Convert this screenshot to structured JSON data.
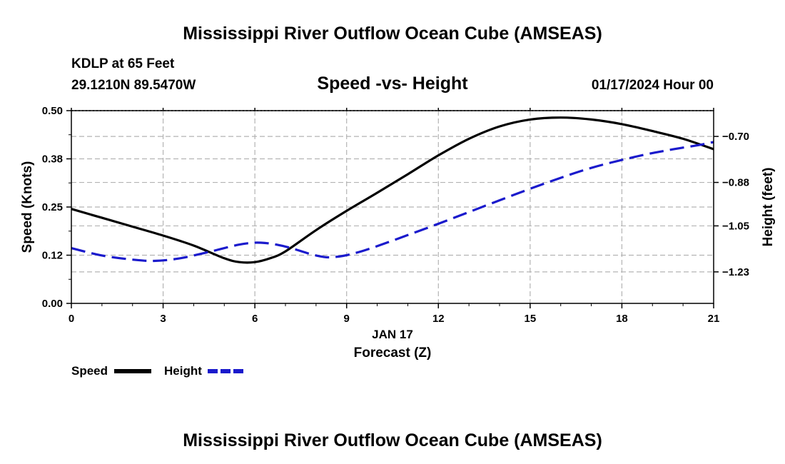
{
  "page": {
    "title": "Mississippi River Outflow Ocean Cube (AMSEAS)",
    "footer_title": "Mississippi River Outflow Ocean Cube (AMSEAS)"
  },
  "header": {
    "station": "KDLP at 65 Feet",
    "coords": "29.1210N  89.5470W",
    "datetime": "01/17/2024 Hour 00"
  },
  "colors": {
    "speed": "#000000",
    "height": "#1a1acc",
    "grid": "#b4b4b4"
  },
  "chart_data": {
    "type": "line",
    "title": "Speed -vs- Height",
    "xlabel": "Forecast (Z)",
    "date_label": "JAN 17",
    "xlim": [
      0,
      21
    ],
    "x_ticks": [
      0,
      3,
      6,
      9,
      12,
      15,
      18,
      21
    ],
    "x_tick_labels": [
      "0",
      "3",
      "6",
      "9",
      "12",
      "15",
      "18",
      "21"
    ],
    "left_axis": {
      "label": "Speed (Knots)",
      "ylim": [
        0,
        0.5
      ],
      "ticks": [
        0,
        0.125,
        0.25,
        0.375,
        0.5
      ],
      "tick_labels": [
        "0.00",
        "0.12",
        "0.25",
        "0.38",
        "0.50"
      ]
    },
    "right_axis": {
      "label": "Height (feet)",
      "ylim": [
        -1.3533,
        -0.5991
      ],
      "ticks": [
        -0.7,
        -0.88,
        -1.05,
        -1.23
      ],
      "tick_labels": [
        "−0.70",
        "−0.88",
        "−1.05",
        "−1.23"
      ]
    },
    "legend": {
      "position": "bottom-left",
      "items": [
        {
          "name": "Speed",
          "style": "solid"
        },
        {
          "name": "Height",
          "style": "dashed"
        }
      ]
    },
    "series": [
      {
        "name": "Speed",
        "axis": "left",
        "style": "solid",
        "x": [
          0,
          1,
          2,
          3,
          4,
          5,
          5.5,
          6,
          6.5,
          7,
          8,
          9,
          10,
          11,
          12,
          13,
          14,
          15,
          16,
          17,
          18,
          19,
          20,
          21
        ],
        "y": [
          0.245,
          0.222,
          0.199,
          0.176,
          0.15,
          0.117,
          0.107,
          0.107,
          0.117,
          0.135,
          0.19,
          0.24,
          0.287,
          0.335,
          0.384,
          0.427,
          0.459,
          0.477,
          0.482,
          0.477,
          0.465,
          0.447,
          0.427,
          0.4
        ]
      },
      {
        "name": "Height",
        "axis": "right",
        "style": "dashed",
        "x": [
          0,
          1,
          2,
          2.7,
          3.5,
          4.5,
          5.5,
          6.2,
          7,
          8,
          8.6,
          9.5,
          11,
          12.5,
          14,
          15.5,
          17,
          18.5,
          19.5,
          20.5,
          21
        ],
        "y": [
          -1.137,
          -1.166,
          -1.182,
          -1.187,
          -1.178,
          -1.152,
          -1.123,
          -1.116,
          -1.131,
          -1.166,
          -1.172,
          -1.149,
          -1.086,
          -1.019,
          -0.95,
          -0.883,
          -0.823,
          -0.778,
          -0.754,
          -0.734,
          -0.722
        ]
      }
    ]
  }
}
